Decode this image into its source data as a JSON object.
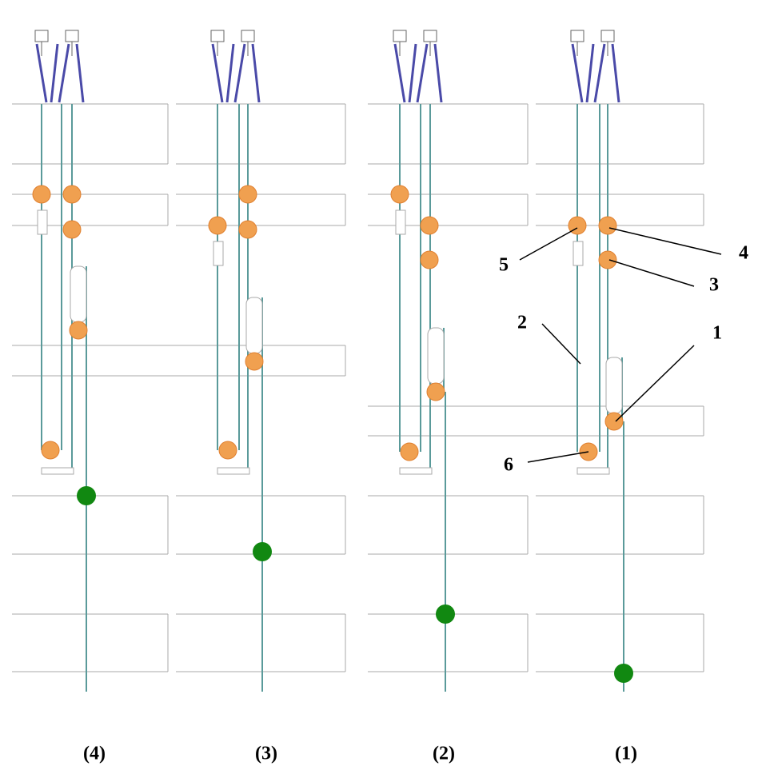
{
  "panels": [
    {
      "label": "(4)"
    },
    {
      "label": "(3)"
    },
    {
      "label": "(2)"
    },
    {
      "label": "(1)"
    }
  ],
  "callouts": [
    {
      "label": "1"
    },
    {
      "label": "2"
    },
    {
      "label": "3"
    },
    {
      "label": "4"
    },
    {
      "label": "5"
    },
    {
      "label": "6"
    }
  ]
}
